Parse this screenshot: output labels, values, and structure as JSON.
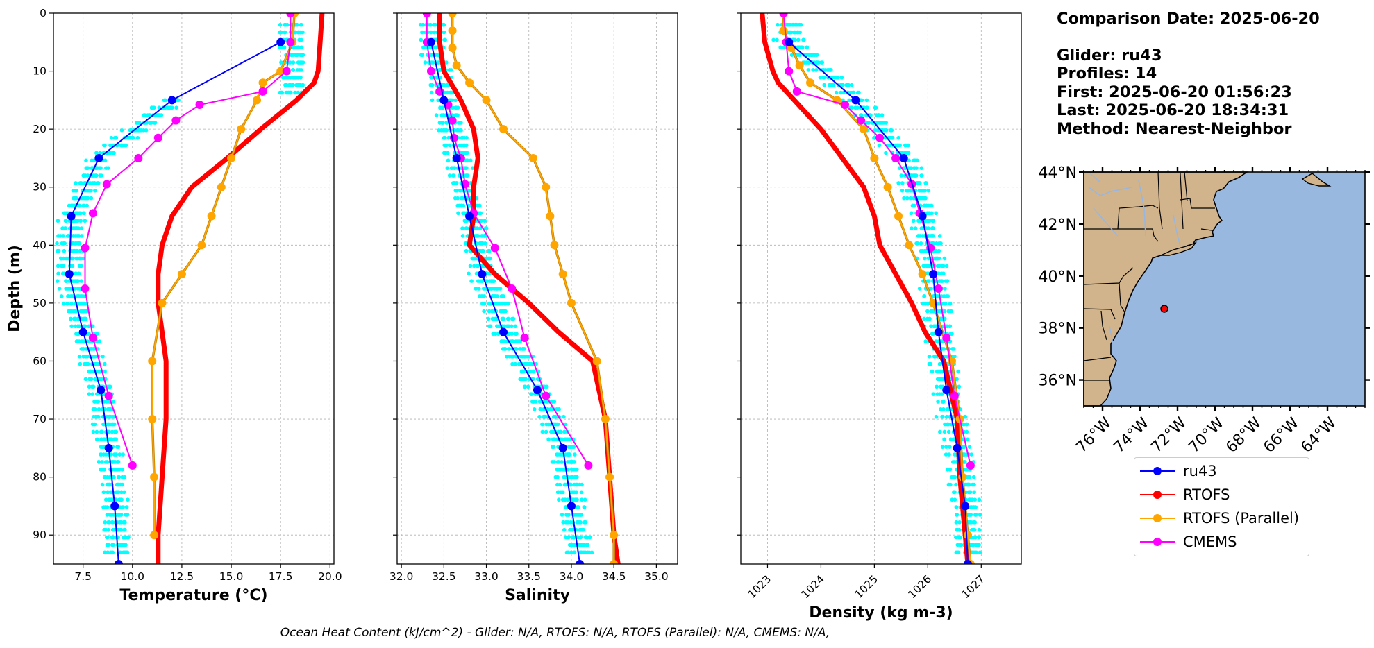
{
  "info": {
    "comparison_date": "Comparison Date: 2025-06-20",
    "glider": "Glider: ru43",
    "profiles": "Profiles: 14",
    "first": "First: 2025-06-20 01:56:23",
    "last": "Last: 2025-06-20 18:34:31",
    "method": "Method: Nearest-Neighbor"
  },
  "footer": "Ocean Heat Content (kJ/cm^2) - Glider: N/A,  RTOFS: N/A,  RTOFS (Parallel): N/A,  CMEMS: N/A,",
  "legend": [
    {
      "name": "ru43",
      "color": "#0000ff"
    },
    {
      "name": "RTOFS",
      "color": "#ff0000"
    },
    {
      "name": "RTOFS (Parallel)",
      "color": "#ffa500"
    },
    {
      "name": "CMEMS",
      "color": "#ff00ff"
    }
  ],
  "colors": {
    "glider_points": "#00ffff",
    "land": "#d2b48c",
    "ocean": "#99b8e0"
  },
  "chart_data": [
    {
      "type": "line",
      "xlabel": "Temperature (°C)",
      "ylabel": "Depth (m)",
      "xlim": [
        6.0,
        20.2
      ],
      "ylim": [
        95,
        0
      ],
      "xticks": [
        "7.5",
        "10.0",
        "12.5",
        "15.0",
        "17.5",
        "20.0"
      ],
      "yticks": [
        "0",
        "10",
        "20",
        "30",
        "40",
        "50",
        "60",
        "70",
        "80",
        "90"
      ],
      "grid": true,
      "series": [
        {
          "name": "ru43",
          "depth": [
            5,
            15,
            25,
            35,
            45,
            55,
            65,
            75,
            85,
            95
          ],
          "values": [
            17.5,
            12.0,
            8.3,
            6.9,
            6.8,
            7.5,
            8.4,
            8.8,
            9.1,
            9.3
          ]
        },
        {
          "name": "RTOFS",
          "depth": [
            0,
            5,
            10,
            12,
            15,
            20,
            25,
            30,
            35,
            40,
            45,
            50,
            60,
            70,
            80,
            90,
            95
          ],
          "values": [
            19.6,
            19.5,
            19.4,
            19.2,
            18.3,
            16.5,
            14.8,
            13.0,
            12.0,
            11.5,
            11.3,
            11.3,
            11.7,
            11.7,
            11.5,
            11.3,
            11.3
          ]
        },
        {
          "name": "RTOFS (Parallel)",
          "depth": [
            0,
            5,
            10,
            12,
            15,
            20,
            25,
            30,
            35,
            40,
            45,
            50,
            60,
            70,
            80,
            90
          ],
          "values": [
            18.2,
            18.1,
            17.5,
            16.6,
            16.3,
            15.5,
            15.0,
            14.5,
            14.0,
            13.5,
            12.5,
            11.5,
            11.0,
            11.0,
            11.1,
            11.1
          ]
        },
        {
          "name": "CMEMS",
          "depth": [
            0,
            5,
            10,
            13.5,
            15.8,
            18.5,
            21.5,
            25,
            29.5,
            34.5,
            40.5,
            47.5,
            56,
            66,
            78
          ],
          "values": [
            18.0,
            18.0,
            17.8,
            16.6,
            13.4,
            12.2,
            11.3,
            10.3,
            8.7,
            8.0,
            7.6,
            7.6,
            8.0,
            8.8,
            10.0
          ]
        }
      ]
    },
    {
      "type": "line",
      "xlabel": "Salinity",
      "ylabel": "",
      "xlim": [
        31.95,
        35.25
      ],
      "ylim": [
        95,
        0
      ],
      "xticks": [
        "32.0",
        "32.5",
        "33.0",
        "33.5",
        "34.0",
        "34.5",
        "35.0"
      ],
      "grid": true,
      "series": [
        {
          "name": "ru43",
          "depth": [
            5,
            15,
            25,
            35,
            45,
            55,
            65,
            75,
            85,
            95
          ],
          "values": [
            32.35,
            32.5,
            32.65,
            32.8,
            32.95,
            33.2,
            33.6,
            33.9,
            34.0,
            34.1
          ]
        },
        {
          "name": "RTOFS",
          "depth": [
            0,
            5,
            10,
            15,
            20,
            25,
            30,
            35,
            40,
            45,
            50,
            55,
            60,
            70,
            80,
            90,
            95
          ],
          "values": [
            32.45,
            32.45,
            32.5,
            32.7,
            32.85,
            32.9,
            32.85,
            32.85,
            32.8,
            33.1,
            33.5,
            33.85,
            34.25,
            34.4,
            34.45,
            34.5,
            34.55
          ]
        },
        {
          "name": "RTOFS (Parallel)",
          "depth": [
            0,
            3,
            6,
            9,
            12,
            15,
            20,
            25,
            30,
            35,
            40,
            45,
            50,
            60,
            70,
            80,
            90,
            95
          ],
          "values": [
            32.6,
            32.6,
            32.6,
            32.65,
            32.8,
            33.0,
            33.2,
            33.55,
            33.7,
            33.75,
            33.8,
            33.9,
            34.0,
            34.3,
            34.4,
            34.45,
            34.5,
            34.5
          ]
        },
        {
          "name": "CMEMS",
          "depth": [
            0,
            5,
            10,
            13.5,
            15.8,
            18.5,
            21.5,
            25,
            29.5,
            34.5,
            40.5,
            47.5,
            56,
            66,
            78
          ],
          "values": [
            32.3,
            32.3,
            32.35,
            32.45,
            32.55,
            32.6,
            32.62,
            32.7,
            32.75,
            32.85,
            33.1,
            33.3,
            33.45,
            33.7,
            34.2
          ]
        }
      ]
    },
    {
      "type": "line",
      "xlabel": "Density (kg m-3)",
      "ylabel": "",
      "xlim": [
        1022.5,
        1027.75
      ],
      "ylim": [
        95,
        0
      ],
      "xticks": [
        "1023",
        "1024",
        "1025",
        "1026",
        "1027"
      ],
      "grid": true,
      "series": [
        {
          "name": "ru43",
          "depth": [
            5,
            15,
            25,
            35,
            45,
            55,
            65,
            75,
            85,
            95
          ],
          "values": [
            1023.4,
            1024.65,
            1025.55,
            1025.9,
            1026.1,
            1026.2,
            1026.35,
            1026.55,
            1026.7,
            1026.75
          ]
        },
        {
          "name": "RTOFS",
          "depth": [
            0,
            5,
            10,
            12,
            15,
            20,
            25,
            30,
            35,
            40,
            45,
            50,
            55,
            60,
            70,
            80,
            90,
            95
          ],
          "values": [
            1022.9,
            1022.95,
            1023.1,
            1023.2,
            1023.5,
            1024.0,
            1024.4,
            1024.8,
            1025.0,
            1025.1,
            1025.4,
            1025.7,
            1025.95,
            1026.3,
            1026.55,
            1026.6,
            1026.7,
            1026.75
          ]
        },
        {
          "name": "RTOFS (Parallel)",
          "depth": [
            0,
            3,
            6,
            9,
            12,
            15,
            20,
            25,
            30,
            35,
            40,
            45,
            50,
            60,
            70,
            80,
            90,
            95
          ],
          "values": [
            1023.3,
            1023.3,
            1023.45,
            1023.6,
            1023.8,
            1024.3,
            1024.8,
            1025.0,
            1025.25,
            1025.45,
            1025.65,
            1025.9,
            1026.1,
            1026.45,
            1026.6,
            1026.65,
            1026.75,
            1026.8
          ]
        },
        {
          "name": "CMEMS",
          "depth": [
            0,
            5,
            10,
            13.5,
            15.8,
            18.5,
            21.5,
            25,
            29.5,
            34.5,
            40.5,
            47.5,
            56,
            66,
            78
          ],
          "values": [
            1023.3,
            1023.35,
            1023.4,
            1023.55,
            1024.45,
            1024.75,
            1025.1,
            1025.4,
            1025.7,
            1025.85,
            1026.05,
            1026.2,
            1026.35,
            1026.5,
            1026.8
          ]
        }
      ]
    },
    {
      "type": "map",
      "lon_ticks": [
        "76°W",
        "74°W",
        "72°W",
        "70°W",
        "68°W",
        "66°W",
        "64°W"
      ],
      "lat_ticks": [
        "44°N",
        "42°N",
        "40°N",
        "38°N",
        "36°N"
      ],
      "extent_lon": [
        -77.0,
        -62.0
      ],
      "extent_lat": [
        35.0,
        44.0
      ],
      "marker": {
        "lon": -73.0,
        "lat": 38.8,
        "color": "#ff0000"
      }
    }
  ]
}
